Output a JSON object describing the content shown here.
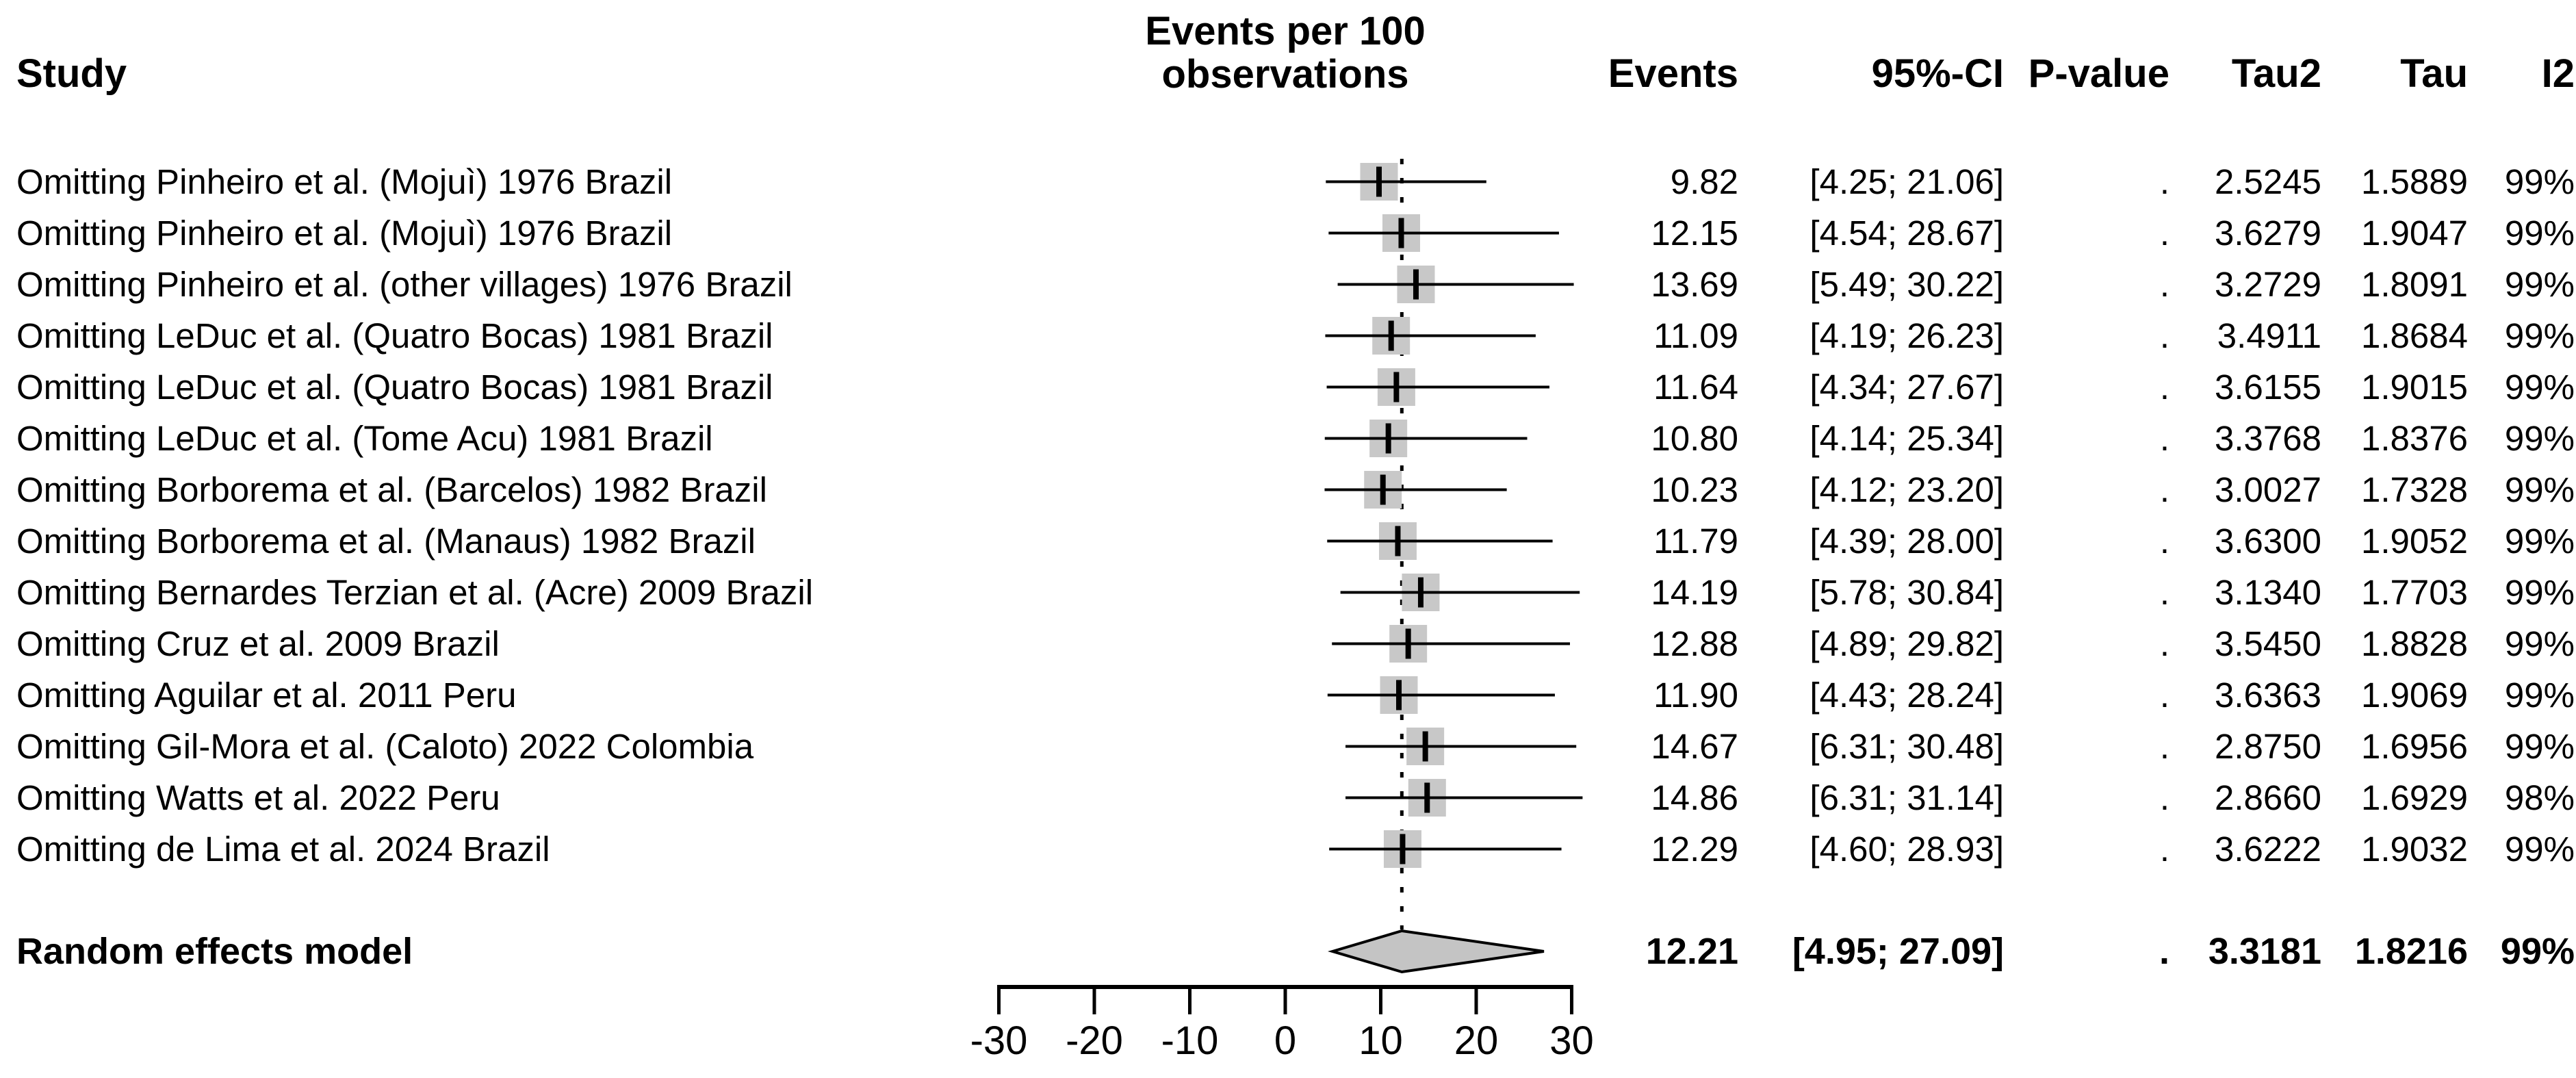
{
  "figure": {
    "headers": {
      "study": "Study",
      "measure_line1": "Events per 100",
      "measure_line2": "observations",
      "events": "Events",
      "ci": "95%-CI",
      "pvalue": "P-value",
      "tau2": "Tau2",
      "tau": "Tau",
      "i2": "I2"
    }
  },
  "chart_data": {
    "type": "forest",
    "analysis": "leave-one-out sensitivity meta-analysis",
    "effect_measure": "Events per 100 observations",
    "axis": {
      "ticks": [
        -30,
        -20,
        -10,
        0,
        10,
        20,
        30
      ],
      "xlim": [
        -30,
        30
      ]
    },
    "reference_line": 12.21,
    "marker_color": "#c8c8c8",
    "diamond_color": "#c4c4c4",
    "studies": [
      {
        "label": "Omitting Pinheiro et al. (Mojuì) 1976 Brazil",
        "events": 9.82,
        "lo": 4.25,
        "hi": 21.06,
        "pvalue": ".",
        "tau2": 2.5245,
        "tau": 1.5889,
        "i2": "99%"
      },
      {
        "label": "Omitting Pinheiro et al. (Mojuì) 1976 Brazil",
        "events": 12.15,
        "lo": 4.54,
        "hi": 28.67,
        "pvalue": ".",
        "tau2": 3.6279,
        "tau": 1.9047,
        "i2": "99%"
      },
      {
        "label": "Omitting Pinheiro et al. (other villages) 1976 Brazil",
        "events": 13.69,
        "lo": 5.49,
        "hi": 30.22,
        "pvalue": ".",
        "tau2": 3.2729,
        "tau": 1.8091,
        "i2": "99%"
      },
      {
        "label": "Omitting LeDuc et al. (Quatro Bocas) 1981 Brazil",
        "events": 11.09,
        "lo": 4.19,
        "hi": 26.23,
        "pvalue": ".",
        "tau2": 3.4911,
        "tau": 1.8684,
        "i2": "99%"
      },
      {
        "label": "Omitting LeDuc et al. (Quatro Bocas) 1981 Brazil",
        "events": 11.64,
        "lo": 4.34,
        "hi": 27.67,
        "pvalue": ".",
        "tau2": 3.6155,
        "tau": 1.9015,
        "i2": "99%"
      },
      {
        "label": "Omitting LeDuc et al. (Tome Acu) 1981 Brazil",
        "events": 10.8,
        "lo": 4.14,
        "hi": 25.34,
        "pvalue": ".",
        "tau2": 3.3768,
        "tau": 1.8376,
        "i2": "99%"
      },
      {
        "label": "Omitting Borborema et al. (Barcelos) 1982 Brazil",
        "events": 10.23,
        "lo": 4.12,
        "hi": 23.2,
        "pvalue": ".",
        "tau2": 3.0027,
        "tau": 1.7328,
        "i2": "99%"
      },
      {
        "label": "Omitting Borborema et al. (Manaus) 1982 Brazil",
        "events": 11.79,
        "lo": 4.39,
        "hi": 28.0,
        "pvalue": ".",
        "tau2": 3.63,
        "tau": 1.9052,
        "i2": "99%"
      },
      {
        "label": "Omitting Bernardes Terzian et al. (Acre) 2009 Brazil",
        "events": 14.19,
        "lo": 5.78,
        "hi": 30.84,
        "pvalue": ".",
        "tau2": 3.134,
        "tau": 1.7703,
        "i2": "99%"
      },
      {
        "label": "Omitting Cruz et al. 2009 Brazil",
        "events": 12.88,
        "lo": 4.89,
        "hi": 29.82,
        "pvalue": ".",
        "tau2": 3.545,
        "tau": 1.8828,
        "i2": "99%"
      },
      {
        "label": "Omitting Aguilar et al. 2011 Peru",
        "events": 11.9,
        "lo": 4.43,
        "hi": 28.24,
        "pvalue": ".",
        "tau2": 3.6363,
        "tau": 1.9069,
        "i2": "99%"
      },
      {
        "label": "Omitting Gil-Mora et al. (Caloto) 2022 Colombia",
        "events": 14.67,
        "lo": 6.31,
        "hi": 30.48,
        "pvalue": ".",
        "tau2": 2.875,
        "tau": 1.6956,
        "i2": "99%"
      },
      {
        "label": "Omitting Watts et al. 2022 Peru",
        "events": 14.86,
        "lo": 6.31,
        "hi": 31.14,
        "pvalue": ".",
        "tau2": 2.866,
        "tau": 1.6929,
        "i2": "98%"
      },
      {
        "label": "Omitting de Lima et al. 2024 Brazil",
        "events": 12.29,
        "lo": 4.6,
        "hi": 28.93,
        "pvalue": ".",
        "tau2": 3.6222,
        "tau": 1.9032,
        "i2": "99%"
      }
    ],
    "summary": {
      "label": "Random effects model",
      "events": 12.21,
      "lo": 4.95,
      "hi": 27.09,
      "events_text": "12.21",
      "ci_text": "[4.95; 27.09]",
      "pvalue": ".",
      "tau2_text": "3.3181",
      "tau_text": "1.8216",
      "i2": "99%"
    }
  }
}
